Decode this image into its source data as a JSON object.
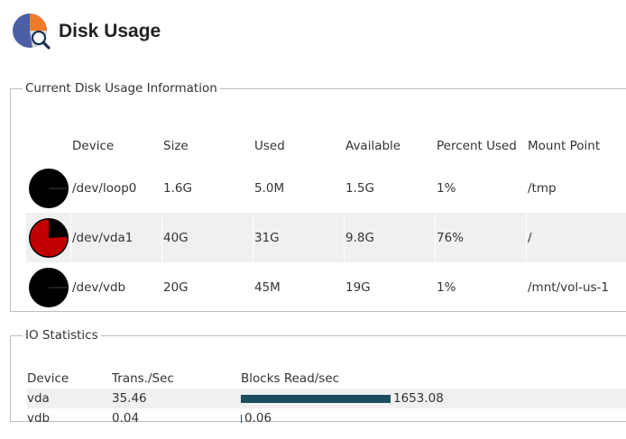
{
  "page": {
    "title": "Disk Usage"
  },
  "disk_panel": {
    "legend": "Current Disk Usage Information",
    "headers": {
      "device": "Device",
      "size": "Size",
      "used": "Used",
      "available": "Available",
      "percent": "Percent Used",
      "mount": "Mount Point"
    },
    "rows": [
      {
        "device": "/dev/loop0",
        "size": "1.6G",
        "used": "5.0M",
        "available": "1.5G",
        "percent": "1%",
        "percent_value": 1,
        "mount": "/tmp"
      },
      {
        "device": "/dev/vda1",
        "size": "40G",
        "used": "31G",
        "available": "9.8G",
        "percent": "76%",
        "percent_value": 76,
        "mount": "/"
      },
      {
        "device": "/dev/vdb",
        "size": "20G",
        "used": "45M",
        "available": "19G",
        "percent": "1%",
        "percent_value": 1,
        "mount": "/mnt/vol-us-1"
      }
    ]
  },
  "io_panel": {
    "legend": "IO Statistics",
    "headers": {
      "device": "Device",
      "trans": "Trans./Sec",
      "blocks": "Blocks Read/sec"
    },
    "rows": [
      {
        "device": "vda",
        "trans": "35.46",
        "blocks": "1653.08",
        "blocks_value": 1653.08
      },
      {
        "device": "vdb",
        "trans": "0.04",
        "blocks": "0.06",
        "blocks_value": 0.06
      }
    ]
  },
  "colors": {
    "pie_used": "#c00000",
    "pie_background": "#000000",
    "io_bar": "#1b4d5c"
  },
  "icons": {
    "logo": "disk-usage-pie-magnifier-icon"
  }
}
